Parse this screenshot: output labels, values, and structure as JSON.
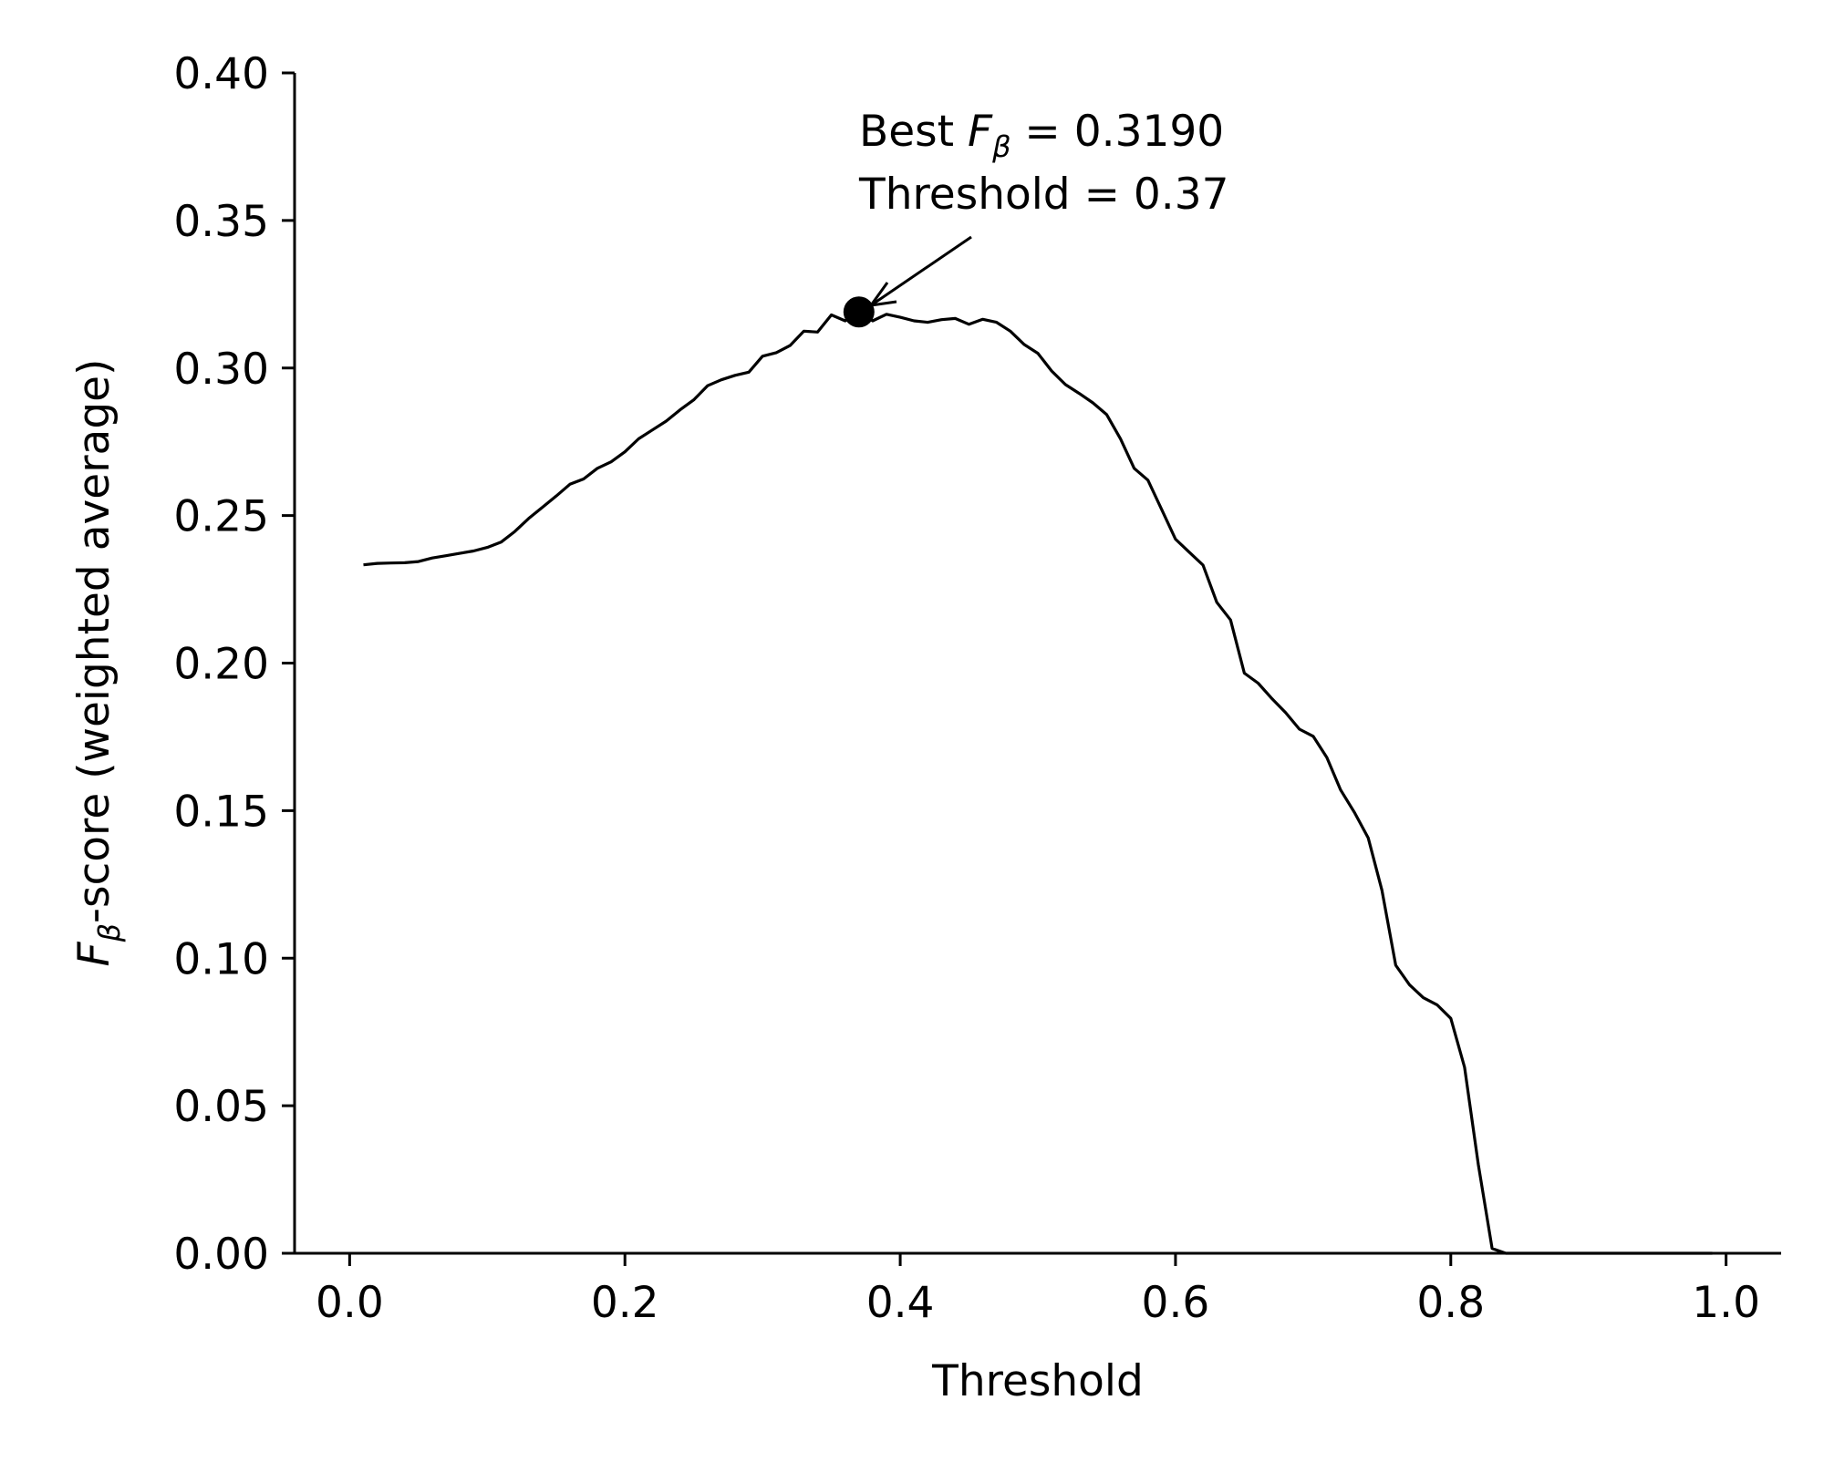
{
  "chart_data": {
    "type": "line",
    "xlabel": "Threshold",
    "ylabel": {
      "prefix": "F",
      "subscript": "β",
      "suffix": "-score (weighted average)"
    },
    "xlim": [
      -0.04,
      1.04
    ],
    "ylim": [
      0.0,
      0.4
    ],
    "x_ticks": [
      0.0,
      0.2,
      0.4,
      0.6,
      0.8,
      1.0
    ],
    "x_tick_labels": [
      "0.0",
      "0.2",
      "0.4",
      "0.6",
      "0.8",
      "1.0"
    ],
    "y_ticks": [
      0.0,
      0.05,
      0.1,
      0.15,
      0.2,
      0.25,
      0.3,
      0.35,
      0.4
    ],
    "y_tick_labels": [
      "0.00",
      "0.05",
      "0.10",
      "0.15",
      "0.20",
      "0.25",
      "0.30",
      "0.35",
      "0.40"
    ],
    "grid": false,
    "series": [
      {
        "color": "#000000",
        "x": [
          0.01,
          0.02,
          0.03,
          0.04,
          0.05,
          0.06,
          0.07,
          0.08,
          0.09,
          0.1,
          0.11,
          0.12,
          0.13,
          0.14,
          0.15,
          0.16,
          0.17,
          0.18,
          0.19,
          0.2,
          0.21,
          0.22,
          0.23,
          0.24,
          0.25,
          0.26,
          0.27,
          0.28,
          0.29,
          0.3,
          0.31,
          0.32,
          0.33,
          0.34,
          0.35,
          0.36,
          0.37,
          0.38,
          0.39,
          0.4,
          0.41,
          0.42,
          0.43,
          0.44,
          0.45,
          0.46,
          0.47,
          0.48,
          0.49,
          0.5,
          0.51,
          0.52,
          0.53,
          0.54,
          0.55,
          0.56,
          0.57,
          0.58,
          0.59,
          0.6,
          0.61,
          0.62,
          0.63,
          0.64,
          0.65,
          0.66,
          0.67,
          0.68,
          0.69,
          0.7,
          0.71,
          0.72,
          0.73,
          0.74,
          0.75,
          0.76,
          0.77,
          0.78,
          0.79,
          0.8,
          0.81,
          0.82,
          0.83,
          0.84,
          0.85,
          0.86,
          0.87,
          0.88,
          0.89,
          0.9,
          0.91,
          0.92,
          0.93,
          0.94,
          0.95,
          0.96,
          0.97,
          0.98,
          0.99
        ],
        "y": [
          0.2333,
          0.2338,
          0.2339,
          0.234,
          0.2344,
          0.2356,
          0.2364,
          0.2372,
          0.238,
          0.2392,
          0.241,
          0.2446,
          0.249,
          0.2528,
          0.2566,
          0.2606,
          0.2624,
          0.266,
          0.2682,
          0.2716,
          0.276,
          0.279,
          0.282,
          0.2858,
          0.2892,
          0.294,
          0.296,
          0.2975,
          0.2986,
          0.304,
          0.3052,
          0.3076,
          0.3125,
          0.3122,
          0.318,
          0.316,
          0.319,
          0.316,
          0.3182,
          0.3172,
          0.316,
          0.3155,
          0.3164,
          0.3168,
          0.3148,
          0.3165,
          0.3155,
          0.3125,
          0.308,
          0.305,
          0.299,
          0.2944,
          0.2914,
          0.2882,
          0.2842,
          0.276,
          0.266,
          0.262,
          0.252,
          0.242,
          0.2376,
          0.2332,
          0.2206,
          0.2146,
          0.1966,
          0.1932,
          0.188,
          0.1832,
          0.1776,
          0.1752,
          0.168,
          0.157,
          0.1494,
          0.1408,
          0.123,
          0.0976,
          0.091,
          0.0866,
          0.0842,
          0.0796,
          0.063,
          0.03,
          0.0016,
          0.0,
          0.0,
          0.0,
          0.0,
          0.0,
          0.0,
          0.0,
          0.0,
          0.0,
          0.0,
          0.0,
          0.0,
          0.0,
          0.0,
          0.0,
          0.0
        ]
      }
    ],
    "highlight_point": {
      "x": 0.37,
      "y": 0.319
    },
    "annotation": {
      "line1_prefix": "Best ",
      "line1_italic": "F",
      "line1_sub": "β",
      "line1_suffix": " = 0.3190",
      "line2": "Threshold = 0.37"
    }
  }
}
